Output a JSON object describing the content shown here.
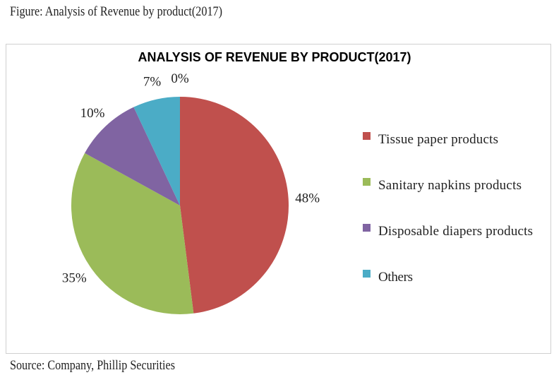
{
  "caption": "Figure: Analysis of Revenue by product(2017)",
  "source": "Source: Company, Phillip Securities",
  "chart_data": {
    "type": "pie",
    "title": "ANALYSIS OF REVENUE BY PRODUCT(2017)",
    "categories": [
      "Tissue paper products",
      "Sanitary napkins products",
      "Disposable diapers products",
      "Others",
      ""
    ],
    "values": [
      48,
      35,
      10,
      7,
      0
    ],
    "data_labels": [
      "48%",
      "35%",
      "10%",
      "7%",
      "0%"
    ],
    "colors": [
      "#c0504d",
      "#9bbb59",
      "#8064a2",
      "#4bacc6",
      "#f79646"
    ],
    "legend_position": "right",
    "start_angle": "top, clockwise"
  }
}
